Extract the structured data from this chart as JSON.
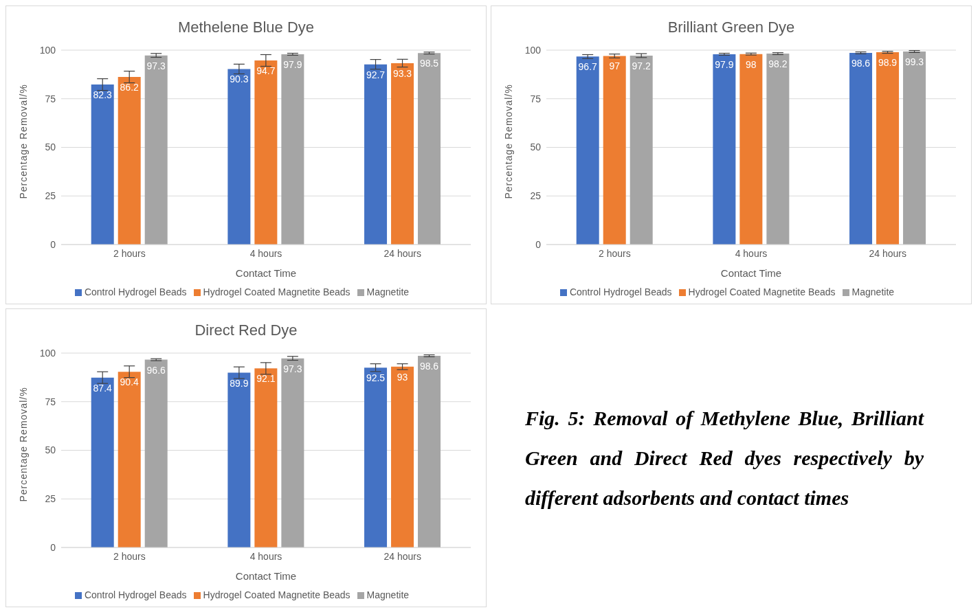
{
  "chart_data": [
    {
      "type": "bar",
      "title": "Methelene Blue Dye",
      "xlabel": "Contact Time",
      "ylabel": "Percentage Removal/%",
      "categories": [
        "2 hours",
        "4 hours",
        "24 hours"
      ],
      "ylim": [
        0,
        100
      ],
      "yticks": [
        0,
        25,
        50,
        75,
        100
      ],
      "grid": "y",
      "legend": "bottom",
      "data_labels": true,
      "series": [
        {
          "name": "Control Hydrogel Beads",
          "color": "#4472c4",
          "values": [
            82.3,
            90.3,
            92.7
          ],
          "errors": [
            3,
            2.5,
            2.5
          ]
        },
        {
          "name": "Hydrogel Coated Magnetite Beads",
          "color": "#ed7d31",
          "values": [
            86.2,
            94.7,
            93.3
          ],
          "errors": [
            3,
            3,
            2
          ]
        },
        {
          "name": "Magnetite",
          "color": "#a5a5a5",
          "values": [
            97.3,
            97.9,
            98.5
          ],
          "errors": [
            1,
            0.5,
            0.5
          ]
        }
      ]
    },
    {
      "type": "bar",
      "title": "Brilliant Green Dye",
      "xlabel": "Contact Time",
      "ylabel": "Percentage Removal/%",
      "categories": [
        "2 hours",
        "4 hours",
        "24 hours"
      ],
      "ylim": [
        0,
        100
      ],
      "yticks": [
        0,
        25,
        50,
        75,
        100
      ],
      "grid": "y",
      "legend": "bottom",
      "data_labels": true,
      "series": [
        {
          "name": "Control Hydrogel Beads",
          "color": "#4472c4",
          "values": [
            96.7,
            97.9,
            98.6
          ],
          "errors": [
            1,
            0.5,
            0.5
          ]
        },
        {
          "name": "Hydrogel Coated Magnetite Beads",
          "color": "#ed7d31",
          "values": [
            97,
            98,
            98.9
          ],
          "errors": [
            1,
            0.5,
            0.5
          ]
        },
        {
          "name": "Magnetite",
          "color": "#a5a5a5",
          "values": [
            97.2,
            98.2,
            99.3
          ],
          "errors": [
            1,
            0.5,
            0.5
          ]
        }
      ]
    },
    {
      "type": "bar",
      "title": "Direct Red Dye",
      "xlabel": "Contact Time",
      "ylabel": "Percentage Removal/%",
      "categories": [
        "2 hours",
        "4 hours",
        "24 hours"
      ],
      "ylim": [
        0,
        100
      ],
      "yticks": [
        0,
        25,
        50,
        75,
        100
      ],
      "grid": "y",
      "legend": "bottom",
      "data_labels": true,
      "series": [
        {
          "name": "Control Hydrogel Beads",
          "color": "#4472c4",
          "values": [
            87.4,
            89.9,
            92.5
          ],
          "errors": [
            3,
            3,
            2
          ]
        },
        {
          "name": "Hydrogel Coated Magnetite Beads",
          "color": "#ed7d31",
          "values": [
            90.4,
            92.1,
            93
          ],
          "errors": [
            3,
            3,
            1.5
          ]
        },
        {
          "name": "Magnetite",
          "color": "#a5a5a5",
          "values": [
            96.6,
            97.3,
            98.6
          ],
          "errors": [
            0.5,
            1,
            0.5
          ]
        }
      ]
    },
    {
      "type": "other",
      "annotations": [
        "Fig. 5: Removal of Methylene Blue, Brilliant Green and Direct Red dyes respectively by different adsorbents and contact times"
      ]
    }
  ]
}
